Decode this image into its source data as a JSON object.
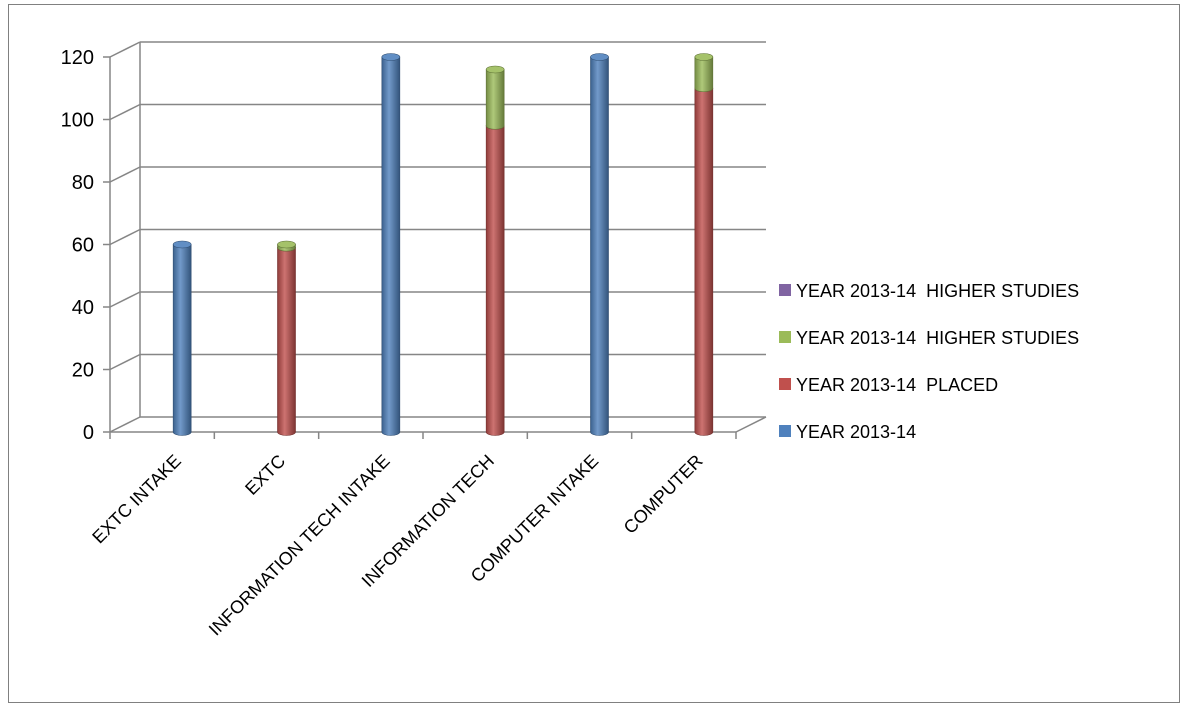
{
  "chart_data": {
    "type": "bar",
    "stacked": true,
    "three_d": true,
    "categories": [
      "EXTC INTAKE",
      "EXTC",
      "INFORMATION TECH INTAKE",
      "INFORMATION TECH",
      "COMPUTER INTAKE",
      "COMPUTER"
    ],
    "series": [
      {
        "name": "YEAR 2013-14",
        "color": "#4F81BD",
        "values": [
          60,
          0,
          120,
          0,
          120,
          0
        ]
      },
      {
        "name": "YEAR 2013-14  PLACED",
        "color": "#C0504D",
        "values": [
          0,
          59,
          0,
          98,
          0,
          110
        ]
      },
      {
        "name": "YEAR 2013-14  HIGHER STUDIES",
        "color": "#9BBB59",
        "values": [
          0,
          1,
          0,
          18,
          0,
          10
        ]
      },
      {
        "name": "YEAR 2013-14  HIGHER STUDIES",
        "color": "#8064A2",
        "values": [
          0,
          0,
          0,
          0,
          0,
          0
        ]
      }
    ],
    "yticks": [
      "0",
      "20",
      "40",
      "60",
      "80",
      "100",
      "120"
    ],
    "ylim": [
      0,
      120
    ],
    "grid": true,
    "legend_position": "right"
  }
}
